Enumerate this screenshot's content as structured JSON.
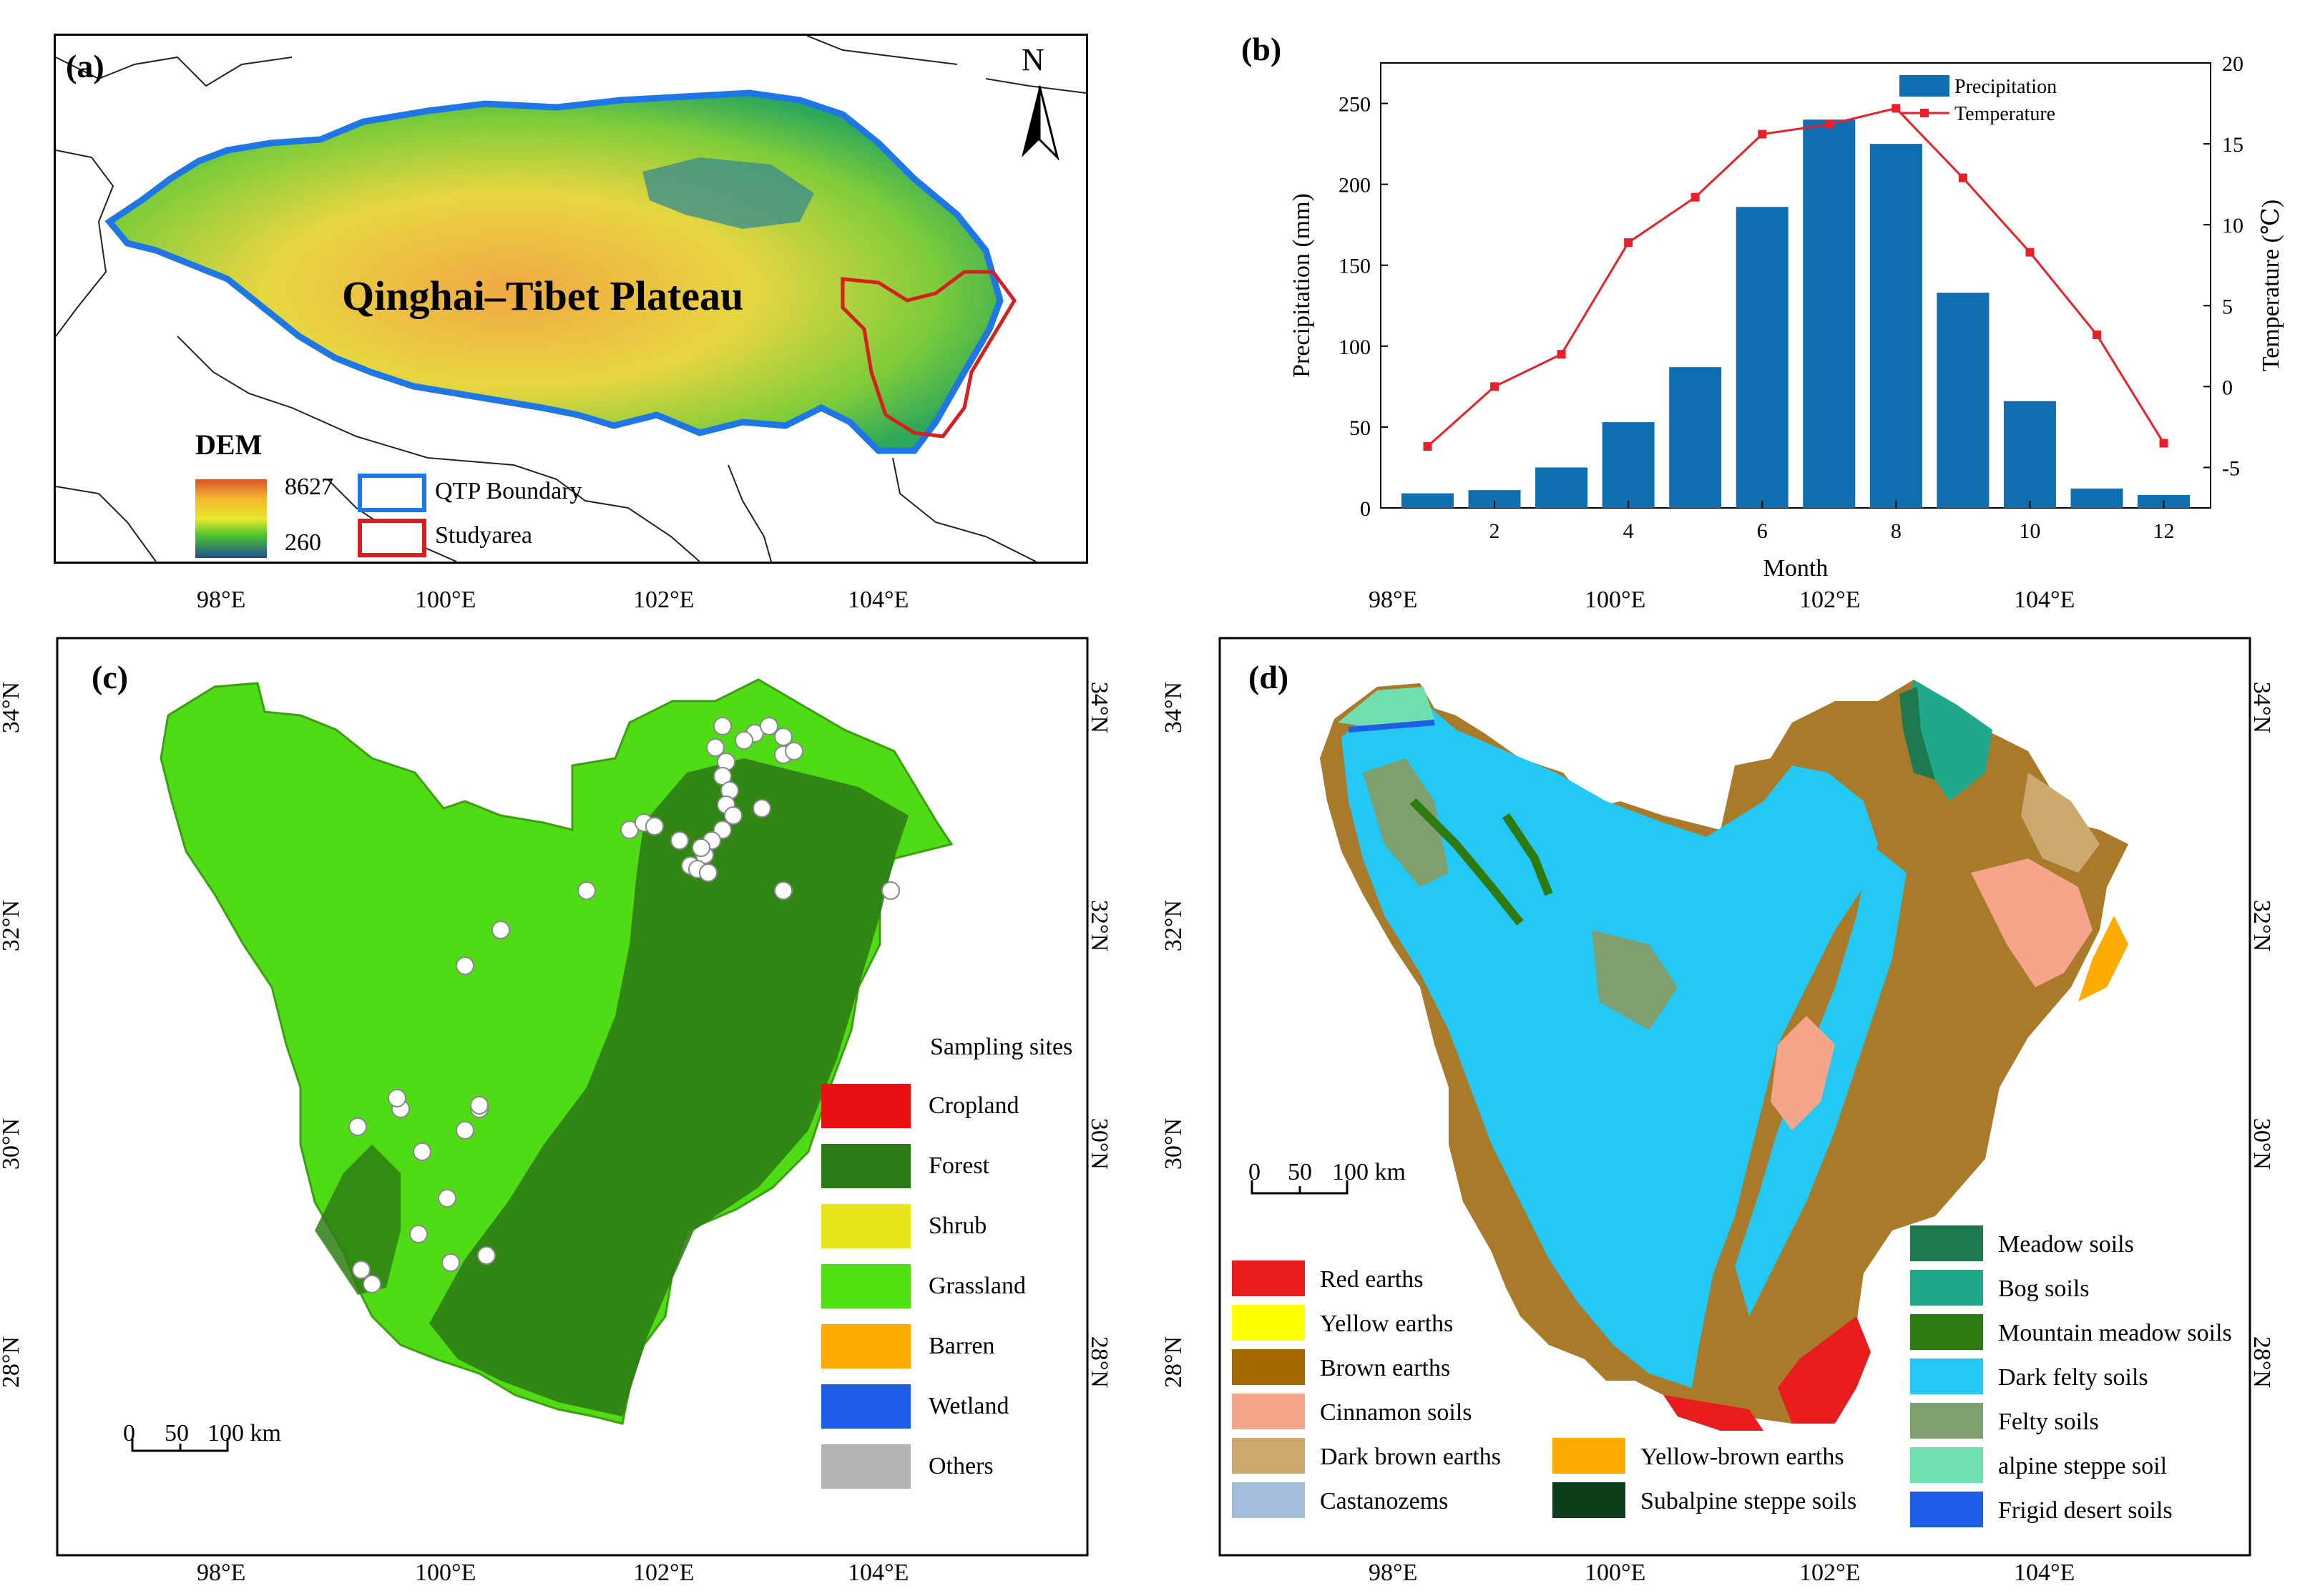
{
  "panel_a": {
    "label": "(a)",
    "map_title": "Qinghai–Tibet Plateau",
    "north": "N",
    "dem_title": "DEM",
    "dem_max": "8627",
    "dem_min": "260",
    "legend": [
      {
        "label": "QTP Boundary",
        "color": "#1f77e6"
      },
      {
        "label": "Studyarea",
        "color": "#d62020"
      }
    ]
  },
  "panel_b": {
    "label": "(b)",
    "chart_data": {
      "type": "bar+line",
      "xlabel": "Month",
      "ylabel_left": "Precipitation (mm)",
      "ylabel_right": "Temperature (℃)",
      "x": [
        1,
        2,
        3,
        4,
        5,
        6,
        7,
        8,
        9,
        10,
        11,
        12
      ],
      "x_ticks": [
        "2",
        "4",
        "6",
        "8",
        "10",
        "12"
      ],
      "y_left_ticks": [
        "0",
        "50",
        "100",
        "150",
        "200",
        "250"
      ],
      "y_right_ticks": [
        "-5",
        "0",
        "5",
        "10",
        "15",
        "20"
      ],
      "ylim_left": [
        0,
        275
      ],
      "ylim_right": [
        -7.5,
        20
      ],
      "legend_position": "top-right",
      "series": [
        {
          "name": "Precipitation",
          "type": "bar",
          "color": "#0e6eb0",
          "values": [
            9,
            11,
            25,
            53,
            87,
            186,
            240,
            225,
            133,
            66,
            12,
            8
          ]
        },
        {
          "name": "Temperature",
          "type": "line",
          "color": "#e8202a",
          "values": [
            -3.7,
            0.0,
            2.0,
            8.9,
            11.7,
            15.6,
            16.2,
            17.2,
            12.9,
            8.3,
            3.2,
            -3.5
          ]
        }
      ]
    }
  },
  "panel_c": {
    "label": "(c)",
    "lon_ticks": [
      "98°E",
      "100°E",
      "102°E",
      "104°E"
    ],
    "lat_ticks": [
      "34°N",
      "32°N",
      "30°N",
      "28°N"
    ],
    "scale": {
      "zero": "0",
      "mid": "50",
      "end": "100 km"
    },
    "sampling_label": "Sampling sites",
    "legend": [
      {
        "label": "Cropland",
        "color": "#e81010"
      },
      {
        "label": "Forest",
        "color": "#2a7a16"
      },
      {
        "label": "Shrub",
        "color": "#e6e61a"
      },
      {
        "label": "Grassland",
        "color": "#4fe012"
      },
      {
        "label": "Barren",
        "color": "#ffaa00"
      },
      {
        "label": "Wetland",
        "color": "#1e5ee6"
      },
      {
        "label": "Others",
        "color": "#b3b3b3"
      }
    ]
  },
  "panel_d": {
    "label": "(d)",
    "lon_ticks": [
      "98°E",
      "100°E",
      "102°E",
      "104°E"
    ],
    "lat_ticks": [
      "34°N",
      "32°N",
      "30°N",
      "28°N"
    ],
    "scale": {
      "zero": "0",
      "mid": "50",
      "end": "100 km"
    },
    "legend_col1": [
      {
        "label": "Red earths",
        "color": "#e81c1c"
      },
      {
        "label": "Yellow earths",
        "color": "#ffff00"
      },
      {
        "label": "Brown earths",
        "color": "#a66b00"
      },
      {
        "label": "Cinnamon soils",
        "color": "#f4a58a"
      },
      {
        "label": "Dark brown earths",
        "color": "#ccaa6e"
      },
      {
        "label": "Castanozems",
        "color": "#a3bcd9"
      }
    ],
    "legend_col2": [
      {
        "label": "Yellow-brown earths",
        "color": "#ffaa00"
      },
      {
        "label": "Subalpine steppe soils",
        "color": "#0b3d1a"
      }
    ],
    "legend_col3": [
      {
        "label": "Meadow soils",
        "color": "#1e7a4e"
      },
      {
        "label": "Bog soils",
        "color": "#1fa88a"
      },
      {
        "label": "Mountain meadow soils",
        "color": "#2e7a0e"
      },
      {
        "label": "Dark felty soils",
        "color": "#24c8f5"
      },
      {
        "label": "Felty soils",
        "color": "#7da06e"
      },
      {
        "label": "alpine steppe soil",
        "color": "#6ee0b0"
      },
      {
        "label": "Frigid desert soils",
        "color": "#1e5ee6"
      }
    ]
  }
}
